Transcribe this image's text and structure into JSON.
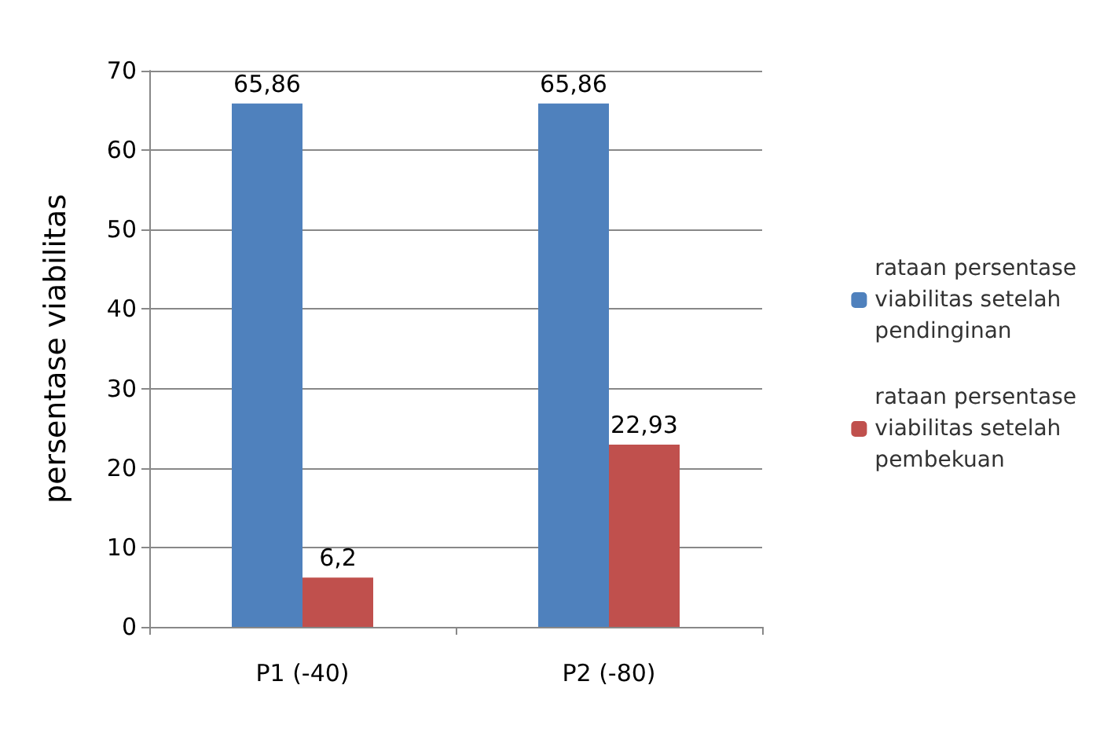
{
  "chart_data": {
    "type": "bar",
    "ylabel": "persentase viabilitas",
    "categories": [
      "P1 (-40)",
      "P2 (-80)"
    ],
    "series": [
      {
        "name": "rataan persentase viabilitas setelah pendinginan",
        "color": "#4f81bd",
        "values": [
          65.86,
          65.86
        ],
        "value_labels": [
          "65,86",
          "65,86"
        ]
      },
      {
        "name": "rataan persentase viabilitas setelah pembekuan",
        "color": "#c0504d",
        "values": [
          6.2,
          22.93
        ],
        "value_labels": [
          "6,2",
          "22,93"
        ]
      }
    ],
    "ylim": [
      0,
      70
    ],
    "yticks": [
      0,
      10,
      20,
      30,
      40,
      50,
      60,
      70
    ],
    "grid": "y",
    "legend": "right"
  }
}
